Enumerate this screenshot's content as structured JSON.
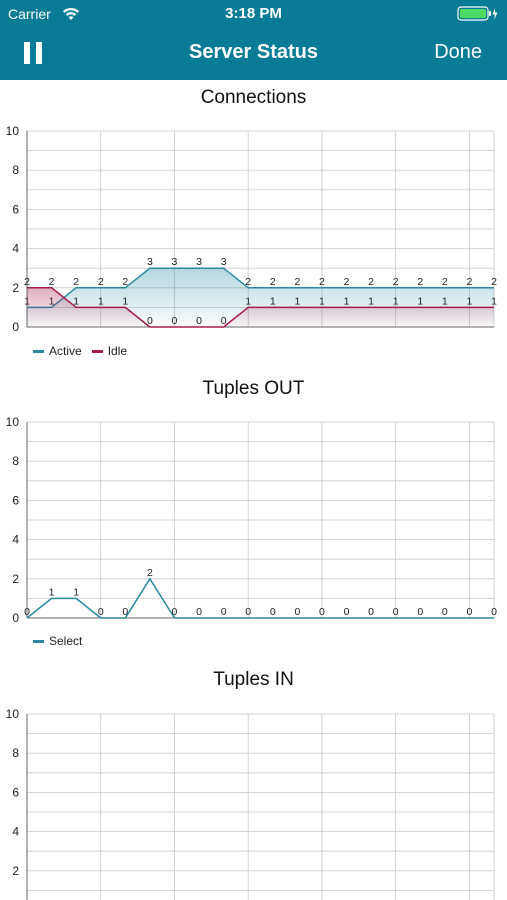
{
  "status_bar": {
    "carrier": "Carrier",
    "time": "3:18 PM"
  },
  "nav": {
    "title": "Server Status",
    "done_label": "Done"
  },
  "colors": {
    "accent": "#087b96",
    "active": "#2a8aa3",
    "idle": "#a61c4b",
    "select": "#2a8aa3"
  },
  "chart_data": [
    {
      "type": "area",
      "title": "Connections",
      "ylim": [
        0,
        10
      ],
      "yticks": [
        0,
        2,
        4,
        6,
        8,
        10
      ],
      "grid": true,
      "legend_placement": "bottom-left",
      "series": [
        {
          "name": "Active",
          "values": [
            1,
            1,
            2,
            2,
            2,
            3,
            3,
            3,
            3,
            2,
            2,
            2,
            2,
            2,
            2,
            2,
            2,
            2,
            2,
            2
          ]
        },
        {
          "name": "Idle",
          "values": [
            2,
            2,
            1,
            1,
            1,
            0,
            0,
            0,
            0,
            1,
            1,
            1,
            1,
            1,
            1,
            1,
            1,
            1,
            1,
            1
          ]
        }
      ]
    },
    {
      "type": "line",
      "title": "Tuples OUT",
      "ylim": [
        0,
        10
      ],
      "yticks": [
        0,
        2,
        4,
        6,
        8,
        10
      ],
      "grid": true,
      "legend_placement": "bottom-left",
      "series": [
        {
          "name": "Select",
          "values": [
            0,
            1,
            1,
            0,
            0,
            2,
            0,
            0,
            0,
            0,
            0,
            0,
            0,
            0,
            0,
            0,
            0,
            0,
            0,
            0
          ]
        }
      ]
    },
    {
      "type": "line",
      "title": "Tuples IN",
      "ylim": [
        0,
        10
      ],
      "yticks": [
        2,
        4,
        6,
        8,
        10
      ],
      "grid": true,
      "series": []
    }
  ]
}
